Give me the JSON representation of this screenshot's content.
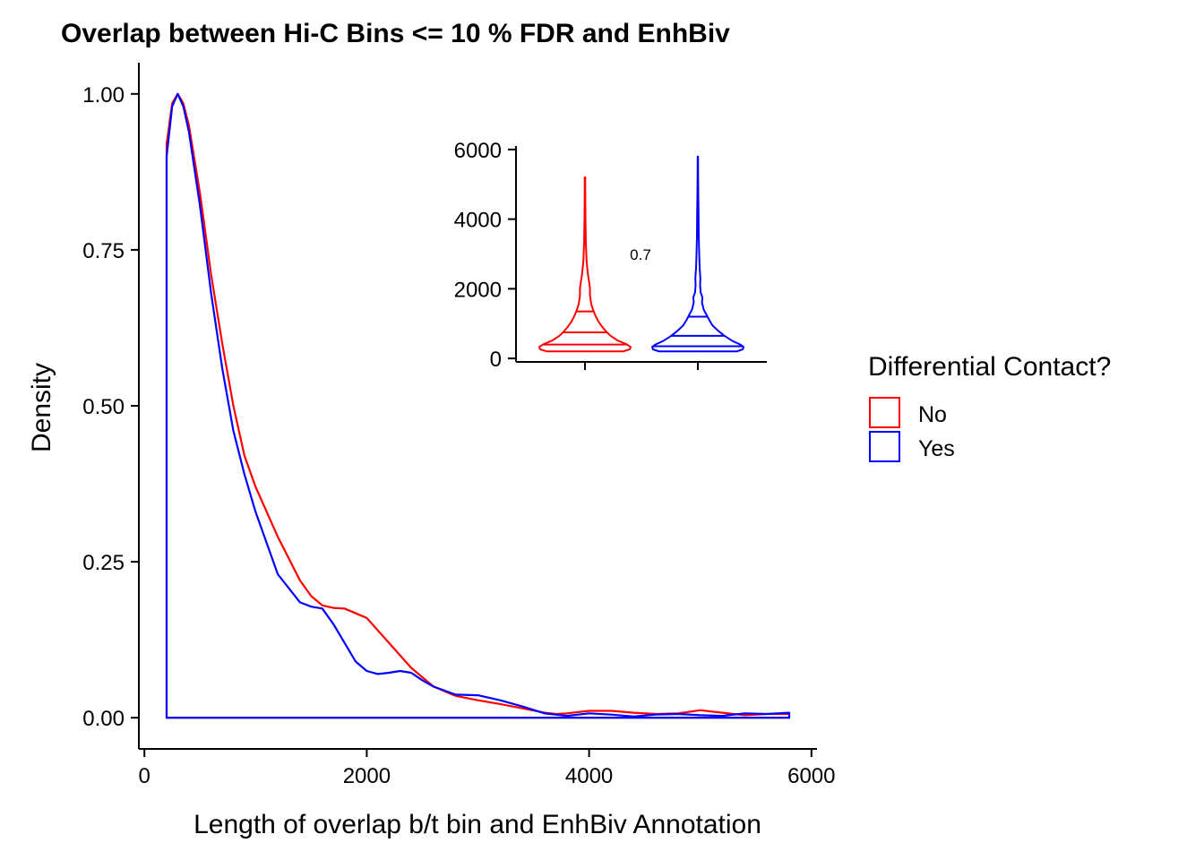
{
  "chart_data": {
    "type": "area",
    "title": "Overlap between Hi-C Bins <= 10 % FDR and EnhBiv",
    "xlabel": "Length of overlap b/t bin and EnhBiv Annotation",
    "ylabel": "Density",
    "xlim": [
      -50,
      6050
    ],
    "ylim": [
      -0.05,
      1.05
    ],
    "x_ticks": [
      0,
      2000,
      4000,
      6000
    ],
    "x_tick_labels": [
      "0",
      "2000",
      "4000",
      "6000"
    ],
    "y_ticks": [
      0,
      0.25,
      0.5,
      0.75,
      1.0
    ],
    "y_tick_labels": [
      "0.00",
      "0.25",
      "0.50",
      "0.75",
      "1.00"
    ],
    "grid": false,
    "legend": {
      "title": "Differential Contact?",
      "position": "right",
      "entries": [
        {
          "label": "No",
          "color": "#FF0000"
        },
        {
          "label": "Yes",
          "color": "#0000FF"
        }
      ]
    },
    "series": [
      {
        "name": "No",
        "color": "#FF0000",
        "x": [
          200,
          250,
          300,
          350,
          400,
          500,
          600,
          700,
          800,
          900,
          1000,
          1200,
          1400,
          1500,
          1600,
          1700,
          1800,
          2000,
          2200,
          2400,
          2600,
          2800,
          3000,
          3200,
          3400,
          3600,
          3700,
          3800,
          4000,
          4200,
          4400,
          4600,
          4800,
          5000,
          5200,
          5400,
          5600,
          5800
        ],
        "y": [
          0.92,
          0.985,
          1.0,
          0.985,
          0.95,
          0.84,
          0.71,
          0.6,
          0.5,
          0.42,
          0.37,
          0.29,
          0.22,
          0.195,
          0.18,
          0.176,
          0.175,
          0.16,
          0.12,
          0.08,
          0.05,
          0.035,
          0.028,
          0.022,
          0.015,
          0.008,
          0.006,
          0.007,
          0.011,
          0.011,
          0.008,
          0.006,
          0.007,
          0.012,
          0.008,
          0.004,
          0.006,
          0.006
        ]
      },
      {
        "name": "Yes",
        "color": "#0000FF",
        "x": [
          200,
          250,
          300,
          350,
          400,
          500,
          600,
          700,
          800,
          900,
          1000,
          1200,
          1400,
          1500,
          1600,
          1700,
          1800,
          1900,
          2000,
          2100,
          2200,
          2300,
          2400,
          2500,
          2600,
          2800,
          3000,
          3200,
          3400,
          3600,
          3800,
          4000,
          4200,
          4400,
          4600,
          4800,
          5000,
          5200,
          5400,
          5600,
          5800
        ],
        "y": [
          0.9,
          0.98,
          1.0,
          0.98,
          0.94,
          0.82,
          0.68,
          0.56,
          0.46,
          0.39,
          0.33,
          0.23,
          0.185,
          0.178,
          0.175,
          0.15,
          0.12,
          0.09,
          0.075,
          0.07,
          0.072,
          0.075,
          0.072,
          0.06,
          0.05,
          0.037,
          0.036,
          0.028,
          0.018,
          0.007,
          0.003,
          0.007,
          0.005,
          0.002,
          0.005,
          0.006,
          0.004,
          0.003,
          0.007,
          0.006,
          0.008
        ]
      }
    ],
    "inset": {
      "type": "violin",
      "ylim": [
        -100,
        6100
      ],
      "y_ticks": [
        0,
        2000,
        4000,
        6000
      ],
      "y_tick_labels": [
        "0",
        "2000",
        "4000",
        "6000"
      ],
      "annotation": "0.7",
      "groups": [
        {
          "name": "No",
          "color": "#FF0000",
          "quantiles": [
            400,
            750,
            1350
          ],
          "min": 200,
          "max": 5200,
          "profile_y": [
            200,
            260,
            330,
            400,
            520,
            650,
            750,
            900,
            1050,
            1200,
            1350,
            1550,
            1800,
            2000,
            2200,
            2450,
            2800,
            3300,
            3900,
            4500,
            5200
          ],
          "profile_w": [
            0.83,
            0.98,
            1.0,
            0.92,
            0.71,
            0.56,
            0.48,
            0.38,
            0.3,
            0.24,
            0.19,
            0.14,
            0.11,
            0.11,
            0.09,
            0.06,
            0.035,
            0.02,
            0.012,
            0.008,
            0.005
          ]
        },
        {
          "name": "Yes",
          "color": "#0000FF",
          "quantiles": [
            350,
            650,
            1200
          ],
          "min": 200,
          "max": 5800,
          "profile_y": [
            200,
            260,
            330,
            400,
            500,
            650,
            800,
            950,
            1100,
            1250,
            1400,
            1600,
            1750,
            1900,
            2100,
            2300,
            2600,
            3000,
            3500,
            4100,
            4700,
            5200,
            5800
          ],
          "profile_w": [
            0.85,
            0.98,
            1.0,
            0.93,
            0.76,
            0.58,
            0.44,
            0.32,
            0.25,
            0.19,
            0.13,
            0.09,
            0.1,
            0.06,
            0.05,
            0.055,
            0.04,
            0.03,
            0.02,
            0.015,
            0.01,
            0.006,
            0.004
          ]
        }
      ]
    }
  }
}
